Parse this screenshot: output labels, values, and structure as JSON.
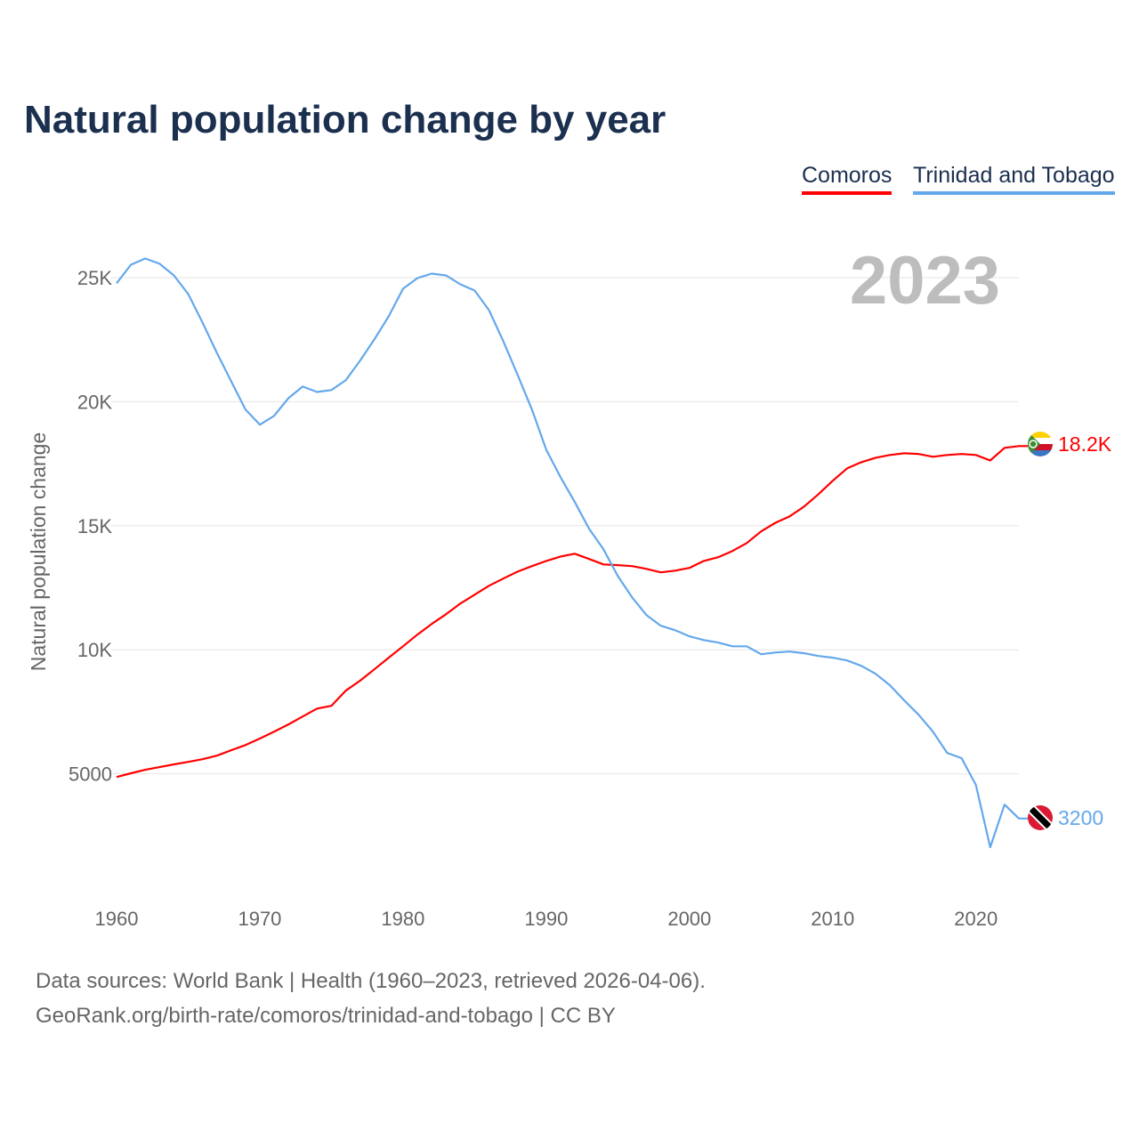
{
  "title": "Natural population change by year",
  "legend": [
    {
      "label": "Comoros",
      "color": "#ff0000"
    },
    {
      "label": "Trinidad and Tobago",
      "color": "#64a8ec"
    }
  ],
  "year_overlay": "2023",
  "end_labels": {
    "comoros": "18.2K",
    "trinidad": "3200"
  },
  "flags": {
    "comoros": "comoros-flag-icon",
    "trinidad": "trinidad-flag-icon"
  },
  "sources": {
    "line1": "Data sources: World Bank | Health (1960–2023, retrieved 2026-04-06).",
    "line2": "GeoRank.org/birth-rate/comoros/trinidad-and-tobago | CC BY"
  },
  "chart_data": {
    "type": "line",
    "title": "Natural population change by year",
    "xlabel": "",
    "ylabel": "Natural population change",
    "x_ticks": [
      "1960",
      "1970",
      "1980",
      "1990",
      "2000",
      "2010",
      "2020"
    ],
    "y_ticks": [
      {
        "value": 5000,
        "label": "5000"
      },
      {
        "value": 10000,
        "label": "10K"
      },
      {
        "value": 15000,
        "label": "15K"
      },
      {
        "value": 20000,
        "label": "20K"
      },
      {
        "value": 25000,
        "label": "25K"
      }
    ],
    "xlim": [
      1960,
      2023
    ],
    "ylim": [
      0,
      25000
    ],
    "grid": true,
    "legend_position": "top-right",
    "x_start": 1960,
    "series": [
      {
        "name": "Comoros",
        "color": "#ff0000",
        "values": [
          4870,
          5020,
          5160,
          5270,
          5380,
          5480,
          5590,
          5730,
          5950,
          6160,
          6420,
          6700,
          6990,
          7310,
          7630,
          7740,
          8350,
          8750,
          9210,
          9680,
          10140,
          10610,
          11040,
          11430,
          11860,
          12220,
          12580,
          12870,
          13150,
          13370,
          13580,
          13760,
          13870,
          13660,
          13440,
          13410,
          13370,
          13260,
          13120,
          13190,
          13300,
          13580,
          13730,
          13980,
          14300,
          14770,
          15120,
          15380,
          15770,
          16270,
          16810,
          17310,
          17560,
          17740,
          17850,
          17920,
          17890,
          17780,
          17850,
          17890,
          17850,
          17630,
          18140,
          18210
        ]
      },
      {
        "name": "Trinidad and Tobago",
        "color": "#64a8ec",
        "values": [
          24770,
          25520,
          25770,
          25560,
          25090,
          24340,
          23190,
          21970,
          20820,
          19680,
          19070,
          19430,
          20140,
          20610,
          20390,
          20470,
          20860,
          21650,
          22510,
          23440,
          24550,
          24980,
          25160,
          25090,
          24730,
          24480,
          23690,
          22440,
          21080,
          19680,
          18060,
          16950,
          15950,
          14870,
          14050,
          12970,
          12110,
          11400,
          10970,
          10790,
          10540,
          10390,
          10290,
          10140,
          10140,
          9820,
          9890,
          9930,
          9860,
          9750,
          9680,
          9570,
          9350,
          9030,
          8570,
          7960,
          7380,
          6700,
          5840,
          5630,
          4550,
          2040,
          3760,
          3200
        ]
      }
    ]
  }
}
